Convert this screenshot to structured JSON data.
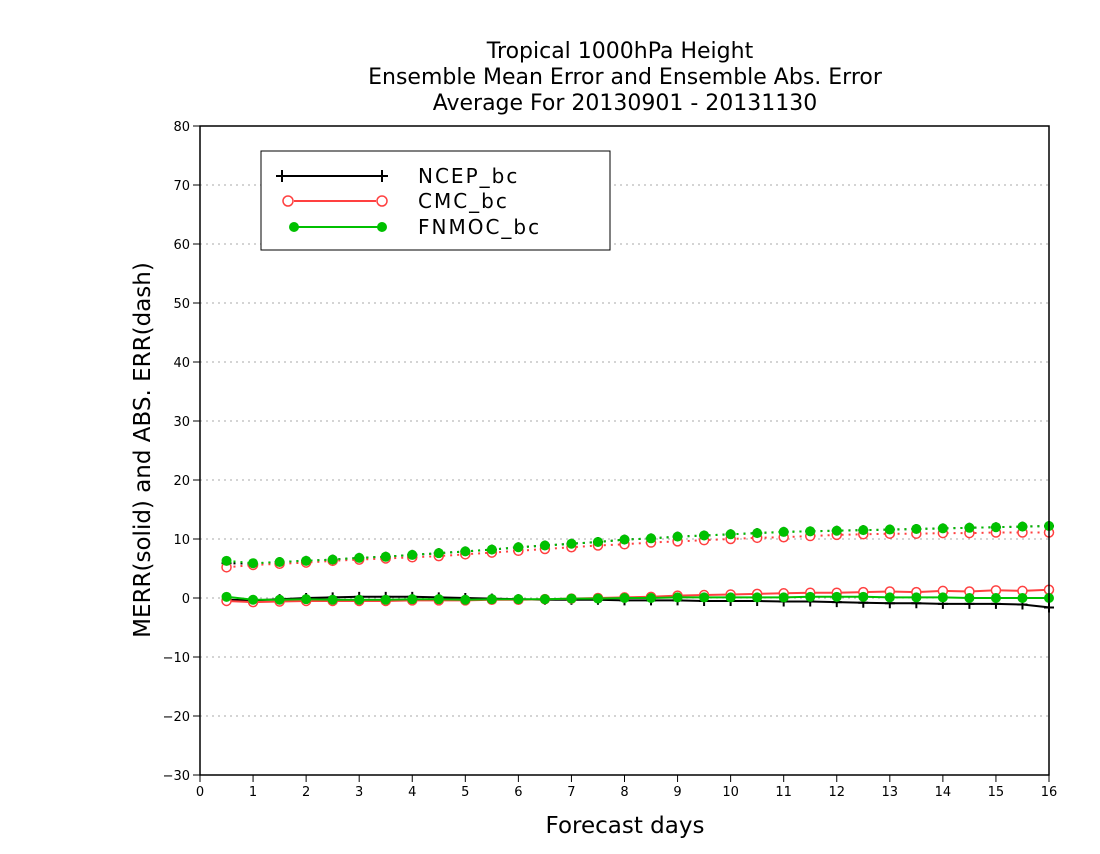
{
  "chart_data": {
    "type": "line",
    "title_lines": [
      "Tropical 1000hPa Height",
      "Ensemble Mean Error and Ensemble Abs. Error",
      "Average For 20130901 - 20131130"
    ],
    "xlabel": "Forecast days",
    "ylabel": "MERR(solid) and ABS. ERR(dash)",
    "xlim": [
      0,
      16
    ],
    "ylim": [
      -30,
      80
    ],
    "xticks": [
      "0",
      "1",
      "2",
      "3",
      "4",
      "5",
      "6",
      "7",
      "8",
      "9",
      "10",
      "11",
      "12",
      "13",
      "14",
      "15",
      "16"
    ],
    "yticks": [
      "80",
      "70",
      "60",
      "50",
      "40",
      "30",
      "20",
      "10",
      "0",
      "−10",
      "−20",
      "−30"
    ],
    "ytick_values": [
      80,
      70,
      60,
      50,
      40,
      30,
      20,
      10,
      0,
      -10,
      -20,
      -30
    ],
    "grid": "horizontal dotted",
    "legend_position": "top-left",
    "x": [
      0.5,
      1,
      1.5,
      2,
      2.5,
      3,
      3.5,
      4,
      4.5,
      5,
      5.5,
      6,
      6.5,
      7,
      7.5,
      8,
      8.5,
      9,
      9.5,
      10,
      10.5,
      11,
      11.5,
      12,
      12.5,
      13,
      13.5,
      14,
      14.5,
      15,
      15.5,
      16
    ],
    "series": [
      {
        "name": "NCEP_bc",
        "color": "#000000",
        "marker": "plus",
        "merr": [
          -0.3,
          -0.4,
          -0.2,
          0.0,
          0.1,
          0.2,
          0.2,
          0.2,
          0.1,
          0.0,
          -0.1,
          -0.2,
          -0.3,
          -0.3,
          -0.3,
          -0.4,
          -0.4,
          -0.4,
          -0.5,
          -0.5,
          -0.5,
          -0.6,
          -0.6,
          -0.7,
          -0.8,
          -0.9,
          -0.9,
          -1.0,
          -1.0,
          -1.0,
          -1.1,
          -1.6
        ],
        "abs_err": [
          5.9,
          5.8,
          6.1,
          6.3,
          6.5,
          6.8,
          7.0,
          7.3,
          7.6,
          7.9,
          8.2,
          8.6,
          8.9,
          9.2,
          9.5,
          9.9,
          10.1,
          10.4,
          10.6,
          10.8,
          11.0,
          11.2,
          11.3,
          11.4,
          11.5,
          11.6,
          11.7,
          11.8,
          11.9,
          12.0,
          12.1,
          12.2
        ]
      },
      {
        "name": "CMC_bc",
        "color": "#ff4040",
        "marker": "open-circle",
        "merr": [
          -0.5,
          -0.7,
          -0.6,
          -0.5,
          -0.5,
          -0.5,
          -0.5,
          -0.4,
          -0.4,
          -0.4,
          -0.3,
          -0.3,
          -0.2,
          -0.1,
          0.0,
          0.1,
          0.2,
          0.4,
          0.5,
          0.6,
          0.7,
          0.8,
          0.9,
          0.9,
          1.0,
          1.1,
          1.0,
          1.2,
          1.1,
          1.3,
          1.2,
          1.4
        ],
        "abs_err": [
          5.2,
          5.6,
          5.8,
          6.0,
          6.3,
          6.5,
          6.7,
          6.9,
          7.1,
          7.4,
          7.7,
          8.0,
          8.3,
          8.6,
          8.9,
          9.1,
          9.4,
          9.6,
          9.8,
          10.0,
          10.2,
          10.3,
          10.5,
          10.7,
          10.8,
          10.9,
          10.9,
          11.0,
          11.0,
          11.1,
          11.1,
          11.1
        ]
      },
      {
        "name": "FNMOC_bc",
        "color": "#00c000",
        "marker": "filled-circle",
        "merr": [
          0.2,
          -0.3,
          -0.3,
          -0.2,
          -0.3,
          -0.3,
          -0.3,
          -0.2,
          -0.2,
          -0.3,
          -0.2,
          -0.2,
          -0.2,
          -0.1,
          -0.1,
          0.0,
          0.0,
          0.1,
          0.1,
          0.1,
          0.1,
          0.1,
          0.2,
          0.2,
          0.2,
          0.1,
          0.1,
          0.1,
          0.0,
          0.0,
          0.0,
          0.0
        ],
        "abs_err": [
          6.3,
          5.9,
          6.1,
          6.3,
          6.5,
          6.8,
          7.0,
          7.3,
          7.6,
          7.9,
          8.2,
          8.6,
          8.9,
          9.2,
          9.5,
          9.9,
          10.1,
          10.4,
          10.6,
          10.8,
          11.0,
          11.2,
          11.3,
          11.4,
          11.5,
          11.6,
          11.7,
          11.8,
          11.9,
          12.0,
          12.1,
          12.2
        ]
      }
    ]
  }
}
